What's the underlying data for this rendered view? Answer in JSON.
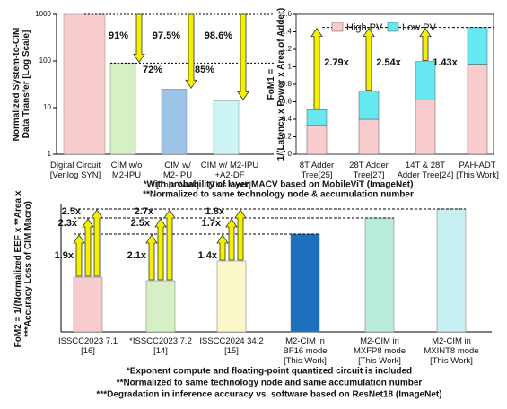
{
  "chart_data": [
    {
      "type": "bar",
      "y_label": "Normalized System-to-CIM\nData Transfer [Log Scale]",
      "log_scale": true,
      "categories": [
        "Digital Circuit\n[Verilog SYN]",
        "CIM w/o\nM2-IPU",
        "CIM w/\nM2-IPU\n[This Work]",
        "CIM w/ M2-IPU\n+A2-DF\n[This Work]"
      ],
      "values": [
        1000,
        90,
        25,
        14
      ],
      "colors": [
        "#f8cccc",
        "#d6efc4",
        "#9dc3e6",
        "#cdf5f5"
      ],
      "ylim": [
        1,
        1000
      ],
      "yticks": [
        1,
        10,
        100,
        1000
      ],
      "reduction_vs_digital": [
        "91%",
        "97.5%",
        "98.6%"
      ],
      "reduction_vs_cim_wo": [
        "72%",
        "85%"
      ]
    },
    {
      "type": "stacked_bar",
      "y_label": "FoM1 =\n1/(Latency x Power x Area of Adder)",
      "categories": [
        "8T Adder\nTree[25]",
        "28T Adder\nTree[27]",
        "14T & 28T\nAdder Tree[24]",
        "PAH-ADT\n[This Work]"
      ],
      "series": [
        {
          "name": "High PV",
          "color": "#f8cccc",
          "values": [
            0.33,
            0.4,
            0.62,
            1.03
          ]
        },
        {
          "name": "Low PV",
          "color": "#66e8f0",
          "values": [
            0.18,
            0.32,
            0.44,
            0.42
          ]
        }
      ],
      "ylim": [
        0,
        1.6
      ],
      "yticks": [
        0,
        0.2,
        0.4,
        0.6,
        0.8,
        1,
        1.2,
        1.4,
        1.6
      ],
      "ratios": [
        "2.79x",
        "2.54x",
        "1.43x"
      ],
      "legend": "top",
      "notes": [
        "*With probability of layer MACV based on MobileViT (ImageNet)",
        "**Normalized to same technology node & accumulation number"
      ]
    },
    {
      "type": "bar",
      "y_label": "FoM2 = 1/(Normalized EEF x **Area x\n***Accuracy Loss of CIM Macro)",
      "categories": [
        "ISSCC2023 7.1\n[16]",
        "*ISSCC2023 7.2\n[14]",
        "ISSCC2024 34.2\n[15]",
        "M2-CIM in\nBF16 mode\n[This Work]",
        "M2-CIM in\nMXFP8 mode\n[This Work]",
        "M2-CIM in\nMXINT8 mode\n[This Work]"
      ],
      "values": [
        61,
        57,
        79,
        109,
        127,
        137
      ],
      "colors": [
        "#f8cccc",
        "#d6efc4",
        "#fbf8c8",
        "#1f6fbf",
        "#b8ecdc",
        "#c8f0f2"
      ],
      "ylim": [
        0,
        150
      ],
      "ratios": [
        [
          "1.9x",
          "2.3x",
          "2.5x"
        ],
        [
          "2.1x",
          "2.5x",
          "2.7x"
        ],
        [
          "1.4x",
          "1.7x",
          "1.8x"
        ]
      ],
      "notes": [
        "*Exponent compute and floating-point quantized circuit is included",
        "**Normalized to same technology node and same accumulation number",
        "***Degradation in inference accuracy vs. software based on ResNet18 (ImageNet)"
      ]
    }
  ]
}
